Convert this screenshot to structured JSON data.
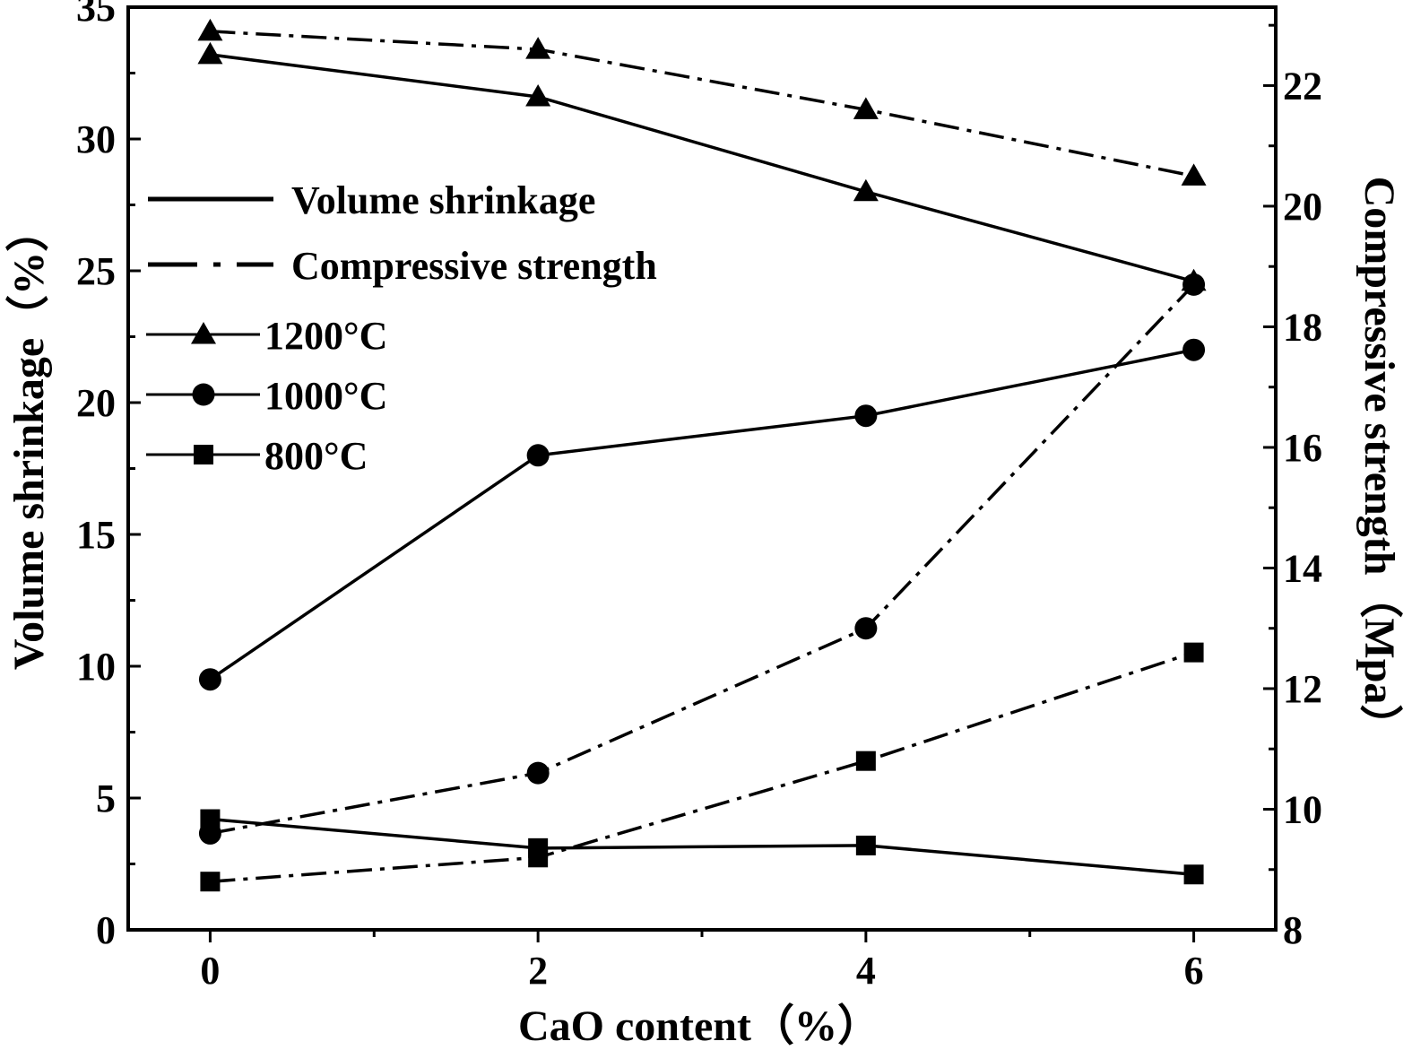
{
  "chart_data": {
    "type": "line",
    "xlabel": "CaO content（%）",
    "ylabel_left": "Volume shrinkage（%）",
    "ylabel_right": "Compressive strength（Mpa）",
    "x": [
      0,
      2,
      4,
      6
    ],
    "x_ticks": [
      "0",
      "2",
      "4",
      "6"
    ],
    "xlim": [
      -0.5,
      6.5
    ],
    "ylim_left": [
      0,
      35
    ],
    "y_ticks_left": [
      "0",
      "5",
      "10",
      "15",
      "20",
      "25",
      "30",
      "35"
    ],
    "ylim_right": [
      8,
      23.3
    ],
    "y_ticks_right": [
      "8",
      "10",
      "12",
      "14",
      "16",
      "18",
      "20",
      "22"
    ],
    "grid": false,
    "legend_position": "upper-left",
    "legend": {
      "style_entries": [
        {
          "label": "Volume shrinkage",
          "dash": "solid"
        },
        {
          "label": "Compressive strength",
          "dash": "dashdot"
        }
      ],
      "marker_entries": [
        {
          "label": "1200°C",
          "marker": "triangle"
        },
        {
          "label": "1000°C",
          "marker": "circle"
        },
        {
          "label": "800°C",
          "marker": "square"
        }
      ]
    },
    "series": [
      {
        "temperature": "1200°C",
        "quantity": "Volume shrinkage",
        "axis": "left",
        "marker": "triangle",
        "dash": "solid",
        "values": [
          33.2,
          31.6,
          28.0,
          24.6
        ]
      },
      {
        "temperature": "1000°C",
        "quantity": "Volume shrinkage",
        "axis": "left",
        "marker": "circle",
        "dash": "solid",
        "values": [
          9.5,
          18.0,
          19.5,
          22.0
        ]
      },
      {
        "temperature": "800°C",
        "quantity": "Volume shrinkage",
        "axis": "left",
        "marker": "square",
        "dash": "solid",
        "values": [
          4.2,
          3.1,
          3.2,
          2.1
        ]
      },
      {
        "temperature": "1200°C",
        "quantity": "Compressive strength",
        "axis": "right",
        "marker": "triangle",
        "dash": "dashdot",
        "values": [
          22.9,
          22.6,
          21.6,
          20.5
        ]
      },
      {
        "temperature": "1000°C",
        "quantity": "Compressive strength",
        "axis": "right",
        "marker": "circle",
        "dash": "dashdot",
        "values": [
          9.6,
          10.6,
          13.0,
          18.7
        ]
      },
      {
        "temperature": "800°C",
        "quantity": "Compressive strength",
        "axis": "right",
        "marker": "square",
        "dash": "dashdot",
        "values": [
          8.8,
          9.2,
          10.8,
          12.6
        ]
      }
    ]
  }
}
